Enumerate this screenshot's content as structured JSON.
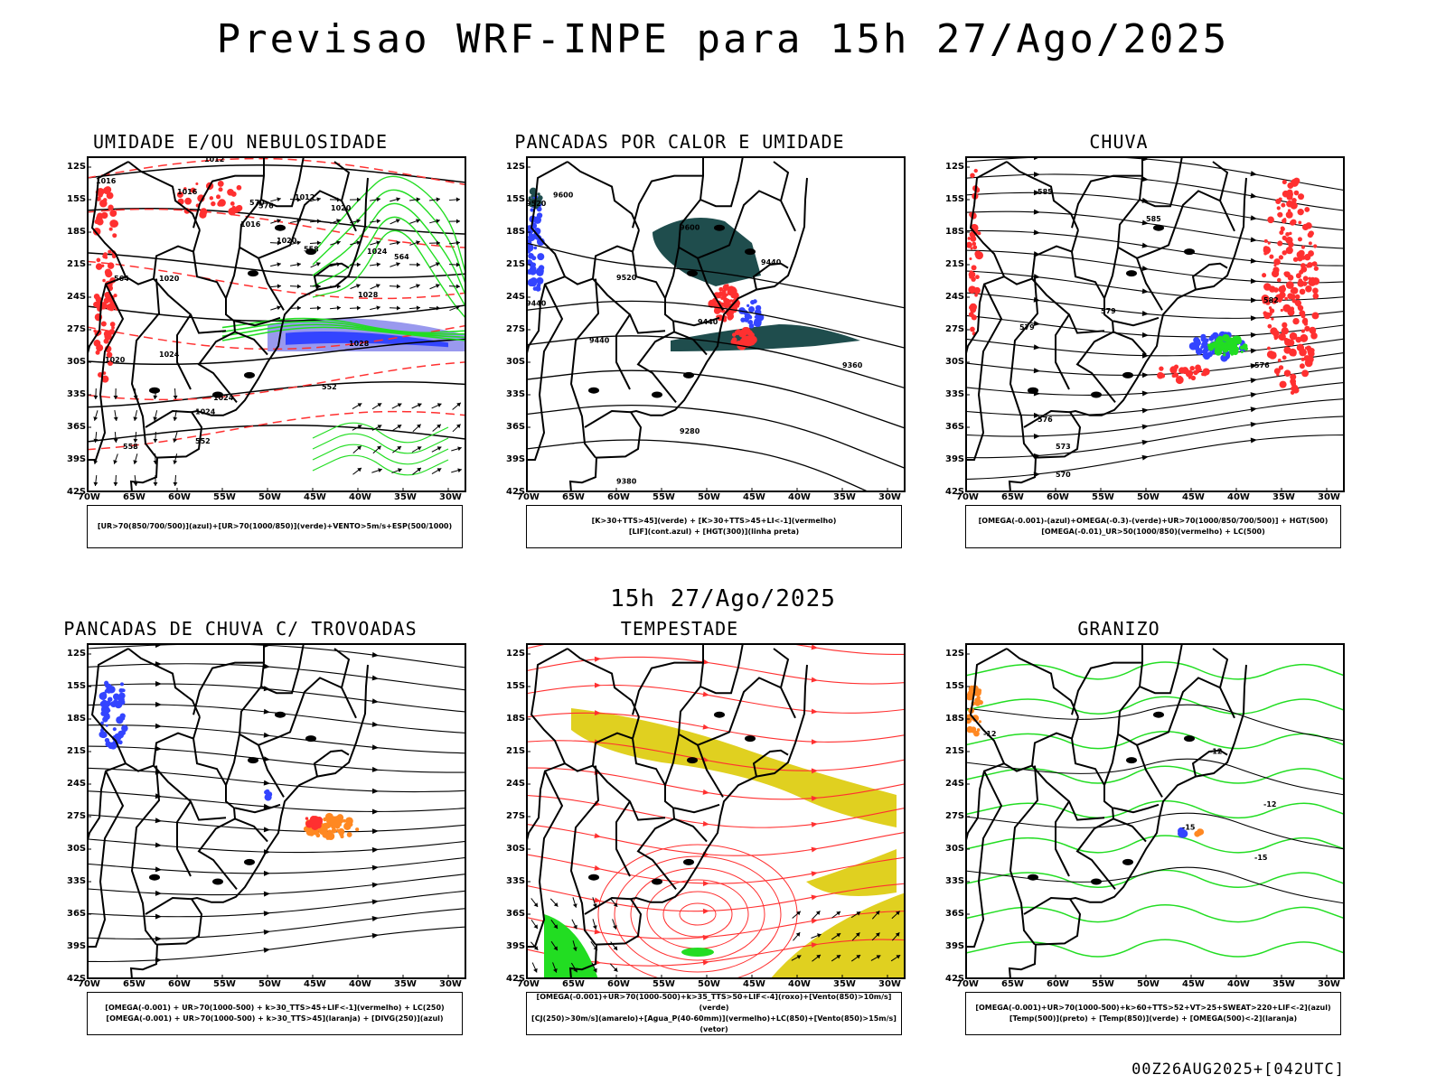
{
  "title": "Previsao WRF-INPE  para 15h 27/Ago/2025",
  "subtitle": "15h 27/Ago/2025",
  "footer": "00Z26AUG2025+[042UTC]",
  "lat_labels": [
    "12S",
    "15S",
    "18S",
    "21S",
    "24S",
    "27S",
    "30S",
    "33S",
    "36S",
    "39S",
    "42S"
  ],
  "lon_labels": [
    "70W",
    "65W",
    "60W",
    "55W",
    "50W",
    "45W",
    "40W",
    "35W",
    "30W"
  ],
  "colors": {
    "red": "#ff3030",
    "green": "#22dd22",
    "blue": "#3344ff",
    "teal": "#1f4d4d",
    "orange": "#ff8822",
    "yellow": "#e0d020",
    "purple": "#9999ee"
  },
  "panels": [
    {
      "id": "umidade",
      "title": "UMIDADE E/OU NEBULOSIDADE",
      "legend": [
        "[UR>70(850/700/500)](azul)+[UR>70(1000/850)](verde)+VENTO>5m/s+ESP(500/1000)"
      ],
      "contour_labels": [
        "1012",
        "1016",
        "1016",
        "1016",
        "1012",
        "1020",
        "1020",
        "1024",
        "1020",
        "1024",
        "1028",
        "1028",
        "1020",
        "1024",
        "570",
        "576",
        "564",
        "558",
        "552",
        "552",
        "558",
        "564",
        "1024"
      ]
    },
    {
      "id": "pancadas_calor",
      "title": "PANCADAS POR CALOR E UMIDADE",
      "legend": [
        "[K>30+TTS>45](verde) + [K>30+TTS>45+LI<-1](vermelho)",
        "[LIF](cont.azul) + [HGT(300)](linha preta)"
      ],
      "contour_labels": [
        "9520",
        "9600",
        "9600",
        "9520",
        "9440",
        "9440",
        "9440",
        "9440",
        "9360",
        "9280",
        "9380"
      ]
    },
    {
      "id": "chuva",
      "title": "CHUVA",
      "legend": [
        "[OMEGA(-0.001)-(azul)+OMEGA(-0.3)-(verde)+UR>70(1000/850/700/500)] + HGT(500)",
        "[OMEGA(-0.01)_UR>50(1000/850)(vermelho) + LC(500)"
      ],
      "contour_labels": [
        "585",
        "585",
        "582",
        "579",
        "579",
        "576",
        "576",
        "573",
        "570"
      ]
    },
    {
      "id": "trovoadas",
      "title": "PANCADAS DE CHUVA C/ TROVOADAS",
      "legend": [
        "[OMEGA(-0.001) + UR>70(1000-500) + k>30_TTS>45+LIF<-1](vermelho) + LC(250)",
        "[OMEGA(-0.001) + UR>70(1000-500) + k>30_TTS>45](laranja) + [DIVG(250)](azul)"
      ],
      "contour_labels": []
    },
    {
      "id": "tempestade",
      "title": "TEMPESTADE",
      "legend": [
        "[OMEGA(-0.001)+UR>70(1000-500)+k>35_TTS>50+LIF<-4](roxo)+[Vento(850)>10m/s](verde)",
        "[CJ(250)>30m/s](amarelo)+[Agua_P(40-60mm)](vermelho)+LC(850)+[Vento(850)>15m/s](vetor)"
      ],
      "contour_labels": []
    },
    {
      "id": "granizo",
      "title": "GRANIZO",
      "legend": [
        "[OMEGA(-0.001)+UR>70(1000-500)+k>60+TTS>52+VT>25+SWEAT>220+LIF<-2](azul)",
        "[Temp(500)](preto) + [Temp(850)](verde) + [OMEGA(500)<-2](laranja)"
      ],
      "contour_labels": [
        "-12",
        "-12",
        "-12",
        "-15",
        "-15"
      ]
    }
  ]
}
